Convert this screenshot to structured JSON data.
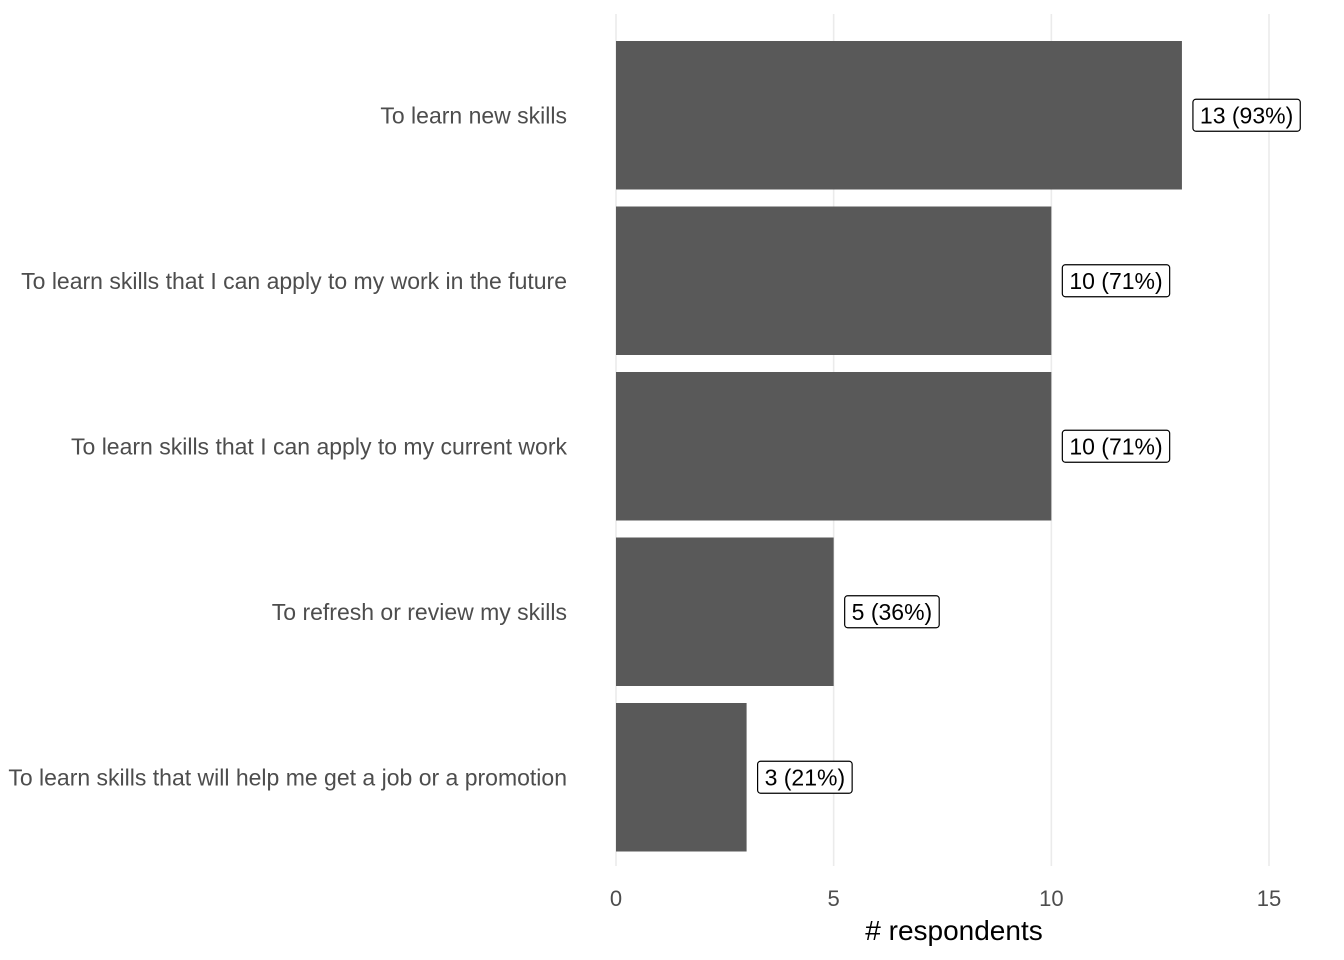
{
  "chart_data": {
    "type": "bar",
    "orientation": "horizontal",
    "categories": [
      "To learn new skills",
      "To learn skills that I can apply to my work in the future",
      "To learn skills that I can apply to my current work",
      "To refresh or review my skills",
      "To learn skills that will help me get a job or a promotion"
    ],
    "values": [
      13,
      10,
      10,
      5,
      3
    ],
    "data_labels": [
      "13 (93%)",
      "10 (71%)",
      "10 (71%)",
      "5 (36%)",
      "3 (21%)"
    ],
    "xlabel": "# respondents",
    "ylabel": "",
    "xlim": [
      0,
      15
    ],
    "x_ticks": [
      0,
      5,
      10,
      15
    ],
    "grid": "vertical",
    "colors": {
      "bar": "#595959",
      "grid": "#ebebeb",
      "text": "#4d4d4d"
    }
  }
}
